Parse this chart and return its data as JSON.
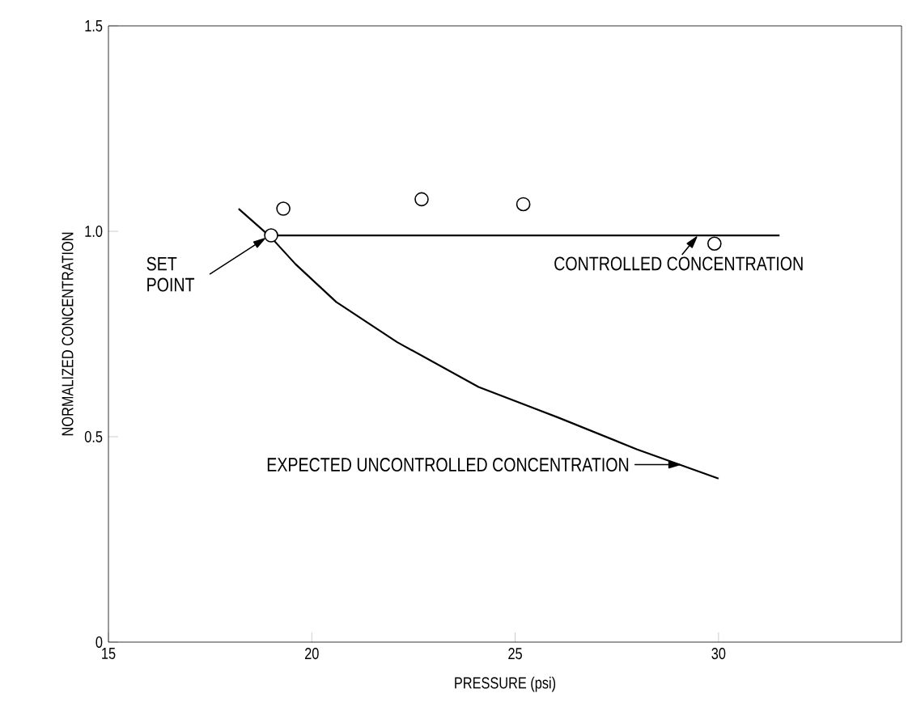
{
  "chart_data": {
    "type": "line",
    "xlabel": "PRESSURE (psi)",
    "ylabel": "NORMALIZED CONCENTRATION",
    "xlim": [
      15,
      34.5
    ],
    "ylim": [
      0,
      1.5
    ],
    "xticks": [
      15,
      20,
      25,
      30
    ],
    "yticks": [
      0,
      0.5,
      {
        "value": 1,
        "label": "1.0"
      },
      1.5
    ],
    "grid": false,
    "series": [
      {
        "color": "#000000",
        "marker": "none",
        "line_style": "solid",
        "x": [
          19.0,
          31.5
        ],
        "values": [
          0.99,
          0.99
        ]
      },
      {
        "color": "#000000",
        "marker": "none",
        "line_style": "solid",
        "x": [
          18.2,
          18.6,
          19.0,
          19.6,
          20.6,
          22.1,
          24.1,
          26.05,
          28.0,
          30.0
        ],
        "values": [
          1.055,
          1.02,
          0.985,
          0.92,
          0.828,
          0.73,
          0.621,
          0.547,
          0.469,
          0.398
        ]
      },
      {
        "type": "scatter",
        "color": "#000000",
        "marker": "circle",
        "x": [
          19.0,
          19.3,
          22.7,
          25.2,
          29.9
        ],
        "values": [
          0.99,
          1.055,
          1.078,
          1.066,
          0.97
        ]
      }
    ],
    "annotations": [
      {
        "text": "SET POINT",
        "x": 19.0,
        "y": 0.99
      },
      {
        "text": "CONTROLLED CONCENTRATION",
        "x": 29.5,
        "y": 0.99
      },
      {
        "text": "EXPECTED UNCONTROLLED CONCENTRATION",
        "x": 29.05,
        "y": 0.432
      }
    ]
  }
}
